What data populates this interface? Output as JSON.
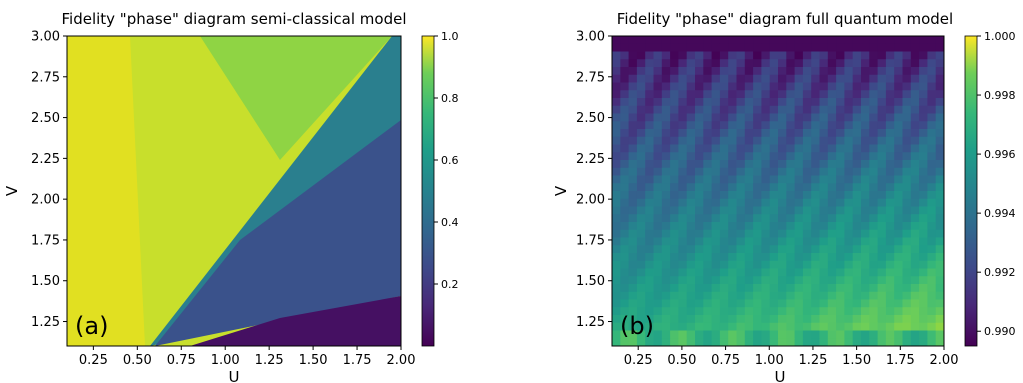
{
  "chart_data": [
    {
      "type": "heatmap",
      "title": "Fidelity \"phase\" diagram semi-classical model",
      "xlabel": "U",
      "ylabel": "V",
      "panel_label": "(a)",
      "xlim": [
        0.1,
        2.0
      ],
      "ylim": [
        1.1,
        3.0
      ],
      "xticks": [
        "0.25",
        "0.50",
        "0.75",
        "1.00",
        "1.25",
        "1.50",
        "1.75",
        "2.00"
      ],
      "yticks": [
        "1.25",
        "1.50",
        "1.75",
        "2.00",
        "2.25",
        "2.50",
        "2.75",
        "3.00"
      ],
      "colormap": "viridis",
      "colorbar": {
        "min": 0.0,
        "max": 1.0,
        "ticks": [
          "0.2",
          "0.4",
          "0.6",
          "0.8",
          "1.0"
        ]
      },
      "regions": [
        {
          "description": "high fidelity region left of boundary",
          "value_range": [
            0.8,
            1.0
          ]
        },
        {
          "description": "intermediate region right of boundary",
          "value_range": [
            0.2,
            0.4
          ]
        },
        {
          "description": "low fidelity band bottom-right",
          "value_range": [
            0.0,
            0.1
          ]
        }
      ],
      "boundary_line": {
        "from": [
          0.6,
          1.1
        ],
        "to": [
          2.0,
          3.0
        ]
      }
    },
    {
      "type": "heatmap",
      "title": "Fidelity \"phase\" diagram full quantum model",
      "xlabel": "U",
      "ylabel": "V",
      "panel_label": "(b)",
      "xlim": [
        0.1,
        2.0
      ],
      "ylim": [
        1.1,
        3.0
      ],
      "xticks": [
        "0.25",
        "0.50",
        "0.75",
        "1.00",
        "1.25",
        "1.50",
        "1.75",
        "2.00"
      ],
      "yticks": [
        "1.25",
        "1.50",
        "1.75",
        "2.00",
        "2.25",
        "2.50",
        "2.75",
        "3.00"
      ],
      "colormap": "viridis",
      "colorbar": {
        "min": 0.9895,
        "max": 1.0,
        "ticks": [
          "0.990",
          "0.992",
          "0.994",
          "0.996",
          "0.998",
          "1.000"
        ]
      },
      "grid_cells": [
        40,
        40
      ]
    }
  ]
}
